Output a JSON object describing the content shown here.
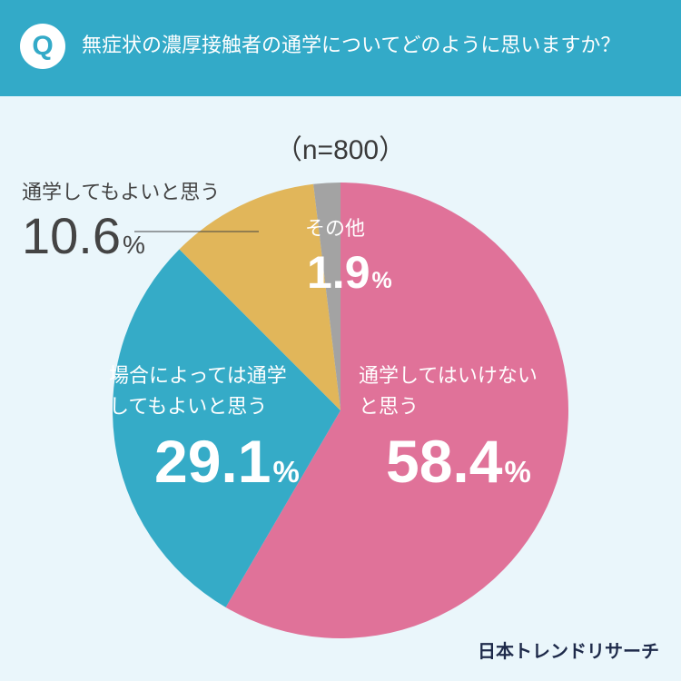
{
  "question": {
    "badge": "Q",
    "text": "無症状の濃厚接触者の通学についてどのように思いますか？"
  },
  "sample_size": "（n=800）",
  "chart_data": {
    "type": "pie",
    "title": "無症状の濃厚接触者の通学についてどのように思いますか？",
    "slices": [
      {
        "label": "通学してはいけないと思う",
        "label_lines": [
          "通学してはいけない",
          "と思う"
        ],
        "value": 58.4,
        "color": "#e07299"
      },
      {
        "label": "場合によっては通学してもよいと思う",
        "label_lines": [
          "場合によっては通学",
          "してもよいと思う"
        ],
        "value": 29.1,
        "color": "#35abc7"
      },
      {
        "label": "通学してもよいと思う",
        "label_lines": [
          "通学してもよいと思う"
        ],
        "value": 10.6,
        "color": "#e1b65a"
      },
      {
        "label": "その他",
        "label_lines": [
          "その他"
        ],
        "value": 1.9,
        "color": "#a3a3a3"
      }
    ],
    "value_texts": [
      "58.4",
      "29.1",
      "10.6",
      "1.9"
    ],
    "unit": "%",
    "start": "top",
    "direction": "clockwise"
  },
  "brand": "日本トレンドリサーチ"
}
